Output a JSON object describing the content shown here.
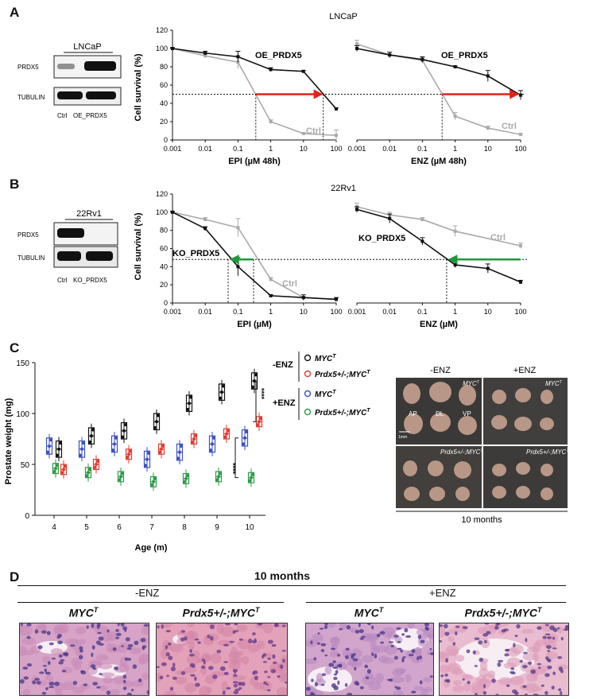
{
  "panel_labels": {
    "a": "A",
    "b": "B",
    "c": "C",
    "d": "D"
  },
  "panel_a": {
    "blot": {
      "title": "LNCaP",
      "rows": [
        "PRDX5",
        "TUBULIN"
      ],
      "lanes": [
        "Ctrl",
        "OE_PRDX5"
      ]
    },
    "chart_title": "LNCaP",
    "ylabel": "Cell survival (%)",
    "left_annotation": "OE_PRDX5",
    "right_annotation": "OE_PRDX5",
    "ctrl_label": "Ctrl"
  },
  "panel_b": {
    "blot": {
      "title": "22Rv1",
      "rows": [
        "PRDX5",
        "TUBULIN"
      ],
      "lanes": [
        "Ctrl",
        "KO_PRDX5"
      ]
    },
    "chart_title": "22Rv1",
    "ylabel": "Cell survival (%)",
    "left_annotation": "KO_PRDX5",
    "right_annotation": "KO_PRDX5",
    "ctrl_label": "Ctrl"
  },
  "panel_c": {
    "legend": {
      "groups": [
        {
          "label": "-ENZ",
          "items": [
            "MYC",
            "Prdx5+/-;MYC"
          ]
        },
        {
          "label": "+ENZ",
          "items": [
            "MYC",
            "Prdx5+/-;MYC"
          ]
        }
      ]
    },
    "significance": [
      "****",
      "****"
    ],
    "photo": {
      "headers": [
        "-ENZ",
        "+ENZ"
      ],
      "top_left_label": "MYC",
      "top_right_label": "MYC",
      "bottom_left_label": "Prdx5+/-;MYC",
      "bottom_right_label": "Prdx5+/-;MYC",
      "lobes": [
        "AP",
        "DL",
        "VP"
      ],
      "scale": "1mm",
      "caption": "10 months"
    }
  },
  "panel_d": {
    "title": "10 months",
    "groups": [
      "-ENZ",
      "+ENZ"
    ],
    "images": [
      "MYC",
      "Prdx5+/-;MYC",
      "MYC",
      "Prdx5+/-;MYC"
    ]
  },
  "colors": {
    "black": "#111111",
    "gray": "#aaaaaa",
    "red": "#e0241b",
    "green": "#1f9a3a",
    "blue": "#3a4fc4",
    "c_red": "#e23b30",
    "c_green": "#2c9a48"
  },
  "chart_data": [
    {
      "type": "line",
      "title": "LNCaP",
      "xlabel": "EPI (µM 48h)",
      "ylabel": "Cell survival (%)",
      "x": [
        0.001,
        0.01,
        0.1,
        1,
        10,
        100
      ],
      "xscale": "log",
      "ylim": [
        0,
        120
      ],
      "xticklabels": [
        "0.001",
        "0.01",
        "0.1",
        "1",
        "10",
        "100"
      ],
      "yticks": [
        0,
        20,
        40,
        60,
        80,
        100,
        120
      ],
      "series": [
        {
          "name": "OE_PRDX5",
          "values": [
            100,
            95,
            91,
            77,
            75,
            34
          ],
          "errors": [
            1,
            2,
            6,
            2,
            1,
            1
          ]
        },
        {
          "name": "Ctrl",
          "values": [
            100,
            92,
            85,
            20,
            7,
            5
          ],
          "errors": [
            1,
            2,
            7,
            2,
            1,
            6
          ]
        }
      ]
    },
    {
      "type": "line",
      "title": "LNCaP",
      "xlabel": "ENZ (µM 48h)",
      "ylabel": "Cell survival (%)",
      "x": [
        0.001,
        0.01,
        0.1,
        1,
        10,
        100
      ],
      "xscale": "log",
      "ylim": [
        0,
        120
      ],
      "xticklabels": [
        "0.001",
        "0.01",
        "0.1",
        "1",
        "10",
        "100"
      ],
      "series": [
        {
          "name": "OE_PRDX5",
          "values": [
            100,
            93,
            88,
            80,
            70,
            49
          ],
          "errors": [
            3,
            3,
            3,
            1,
            6,
            5
          ]
        },
        {
          "name": "Ctrl",
          "values": [
            105,
            93,
            87,
            26,
            13,
            6
          ],
          "errors": [
            4,
            3,
            3,
            4,
            2,
            1
          ]
        }
      ]
    },
    {
      "type": "line",
      "title": "22Rv1",
      "xlabel": "EPI (µM)",
      "ylabel": "Cell survival (%)",
      "x": [
        0.001,
        0.01,
        0.1,
        1,
        10,
        100
      ],
      "xscale": "log",
      "ylim": [
        0,
        120
      ],
      "xticklabels": [
        "0.001",
        "0.01",
        "0.1",
        "1",
        "10",
        "100"
      ],
      "yticks": [
        0,
        20,
        40,
        60,
        80,
        100,
        120
      ],
      "series": [
        {
          "name": "KO_PRDX5",
          "values": [
            100,
            82,
            40,
            8,
            6,
            4
          ],
          "errors": [
            1,
            2,
            10,
            1,
            3,
            2
          ]
        },
        {
          "name": "Ctrl",
          "values": [
            100,
            92,
            83,
            26,
            6,
            4
          ],
          "errors": [
            1,
            2,
            10,
            2,
            1,
            1
          ]
        }
      ]
    },
    {
      "type": "line",
      "title": "22Rv1",
      "xlabel": "ENZ (µM)",
      "ylabel": "Cell survival (%)",
      "x": [
        0.001,
        0.01,
        0.1,
        1,
        10,
        100
      ],
      "xscale": "log",
      "ylim": [
        0,
        120
      ],
      "xticklabels": [
        "0.001",
        "0.01",
        "0.1",
        "1",
        "10",
        "100"
      ],
      "series": [
        {
          "name": "KO_PRDX5",
          "values": [
            103,
            93,
            68,
            42,
            38,
            23
          ],
          "errors": [
            3,
            5,
            4,
            3,
            5,
            2
          ]
        },
        {
          "name": "Ctrl",
          "values": [
            106,
            97,
            92,
            79,
            63
          ],
          "x": [
            0.001,
            0.01,
            0.1,
            1,
            100
          ],
          "errors": [
            4,
            3,
            2,
            6,
            3
          ]
        }
      ]
    },
    {
      "type": "box",
      "xlabel": "Age (m)",
      "ylabel": "Prostate weight (mg)",
      "categories": [
        "4",
        "5",
        "6",
        "7",
        "8",
        "9",
        "10"
      ],
      "ylim": [
        0,
        150
      ],
      "yticks": [
        0,
        50,
        100,
        150
      ],
      "series": [
        {
          "name": "-ENZ MYC",
          "medians": [
            65,
            78,
            83,
            92,
            110,
            121,
            132
          ]
        },
        {
          "name": "-ENZ Prdx5+/-;MYC",
          "medians": [
            45,
            50,
            60,
            65,
            75,
            80,
            92
          ]
        },
        {
          "name": "+ENZ MYC",
          "medians": [
            68,
            65,
            70,
            55,
            62,
            70,
            76
          ]
        },
        {
          "name": "+ENZ Prdx5+/-;MYC",
          "medians": [
            46,
            42,
            38,
            33,
            36,
            38,
            37
          ]
        }
      ]
    }
  ]
}
